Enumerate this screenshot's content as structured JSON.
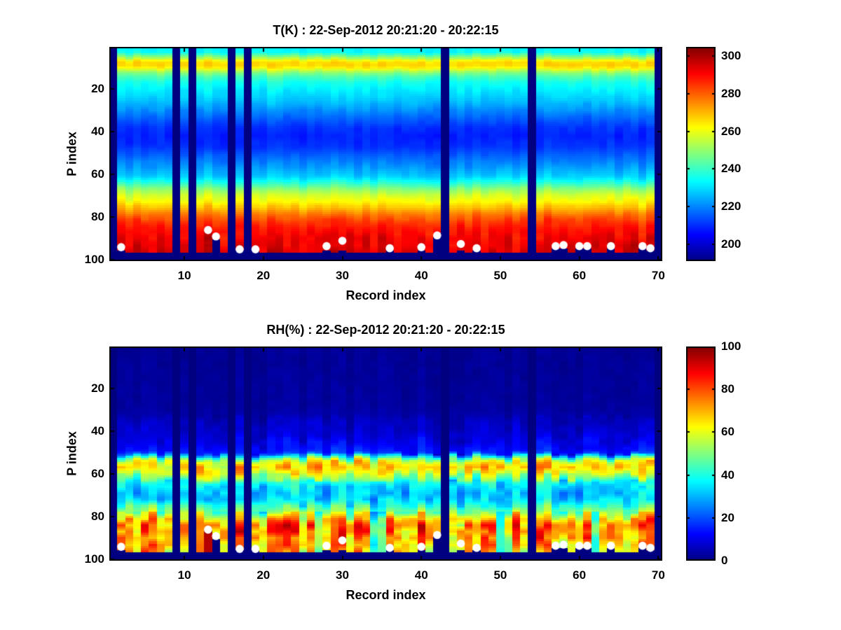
{
  "chart_data": [
    {
      "type": "heatmap",
      "id": "temperature",
      "title": "T(K) : 22-Sep-2012 20:21:20 - 20:22:15",
      "xlabel": "Record index",
      "ylabel": "P index",
      "x_range": [
        0.5,
        70.5
      ],
      "y_range": [
        0.5,
        100.5
      ],
      "y_axis_reversed": true,
      "x_ticks": [
        10,
        20,
        30,
        40,
        50,
        60,
        70
      ],
      "y_ticks": [
        20,
        40,
        60,
        80,
        100
      ],
      "n_records": 70,
      "n_levels": 100,
      "colormap": "jet",
      "clim": [
        191,
        305
      ],
      "colorbar_ticks": [
        200,
        220,
        240,
        260,
        280,
        300
      ],
      "vertical_profile": [
        [
          1,
          233
        ],
        [
          3,
          234
        ],
        [
          5,
          248
        ],
        [
          6,
          254
        ],
        [
          7,
          263
        ],
        [
          8,
          267
        ],
        [
          9,
          267
        ],
        [
          10,
          264
        ],
        [
          12,
          251
        ],
        [
          14,
          243
        ],
        [
          17,
          236
        ],
        [
          20,
          233
        ],
        [
          24,
          229
        ],
        [
          28,
          224
        ],
        [
          33,
          217
        ],
        [
          38,
          211
        ],
        [
          42,
          209
        ],
        [
          47,
          211
        ],
        [
          52,
          217
        ],
        [
          57,
          223
        ],
        [
          61,
          229
        ],
        [
          64,
          239
        ],
        [
          67,
          250
        ],
        [
          70,
          258
        ],
        [
          73,
          263
        ],
        [
          76,
          271
        ],
        [
          79,
          279
        ],
        [
          82,
          285
        ],
        [
          85,
          289
        ],
        [
          89,
          292
        ],
        [
          96,
          295
        ],
        [
          100,
          296
        ]
      ],
      "noise": {
        "base": {
          "col": 1.5,
          "cell": 1.3
        },
        "row_shift": 0.5,
        "bands": [
          {
            "range": [
              1,
              12
            ],
            "col": 1.5,
            "cell": 1.2
          },
          {
            "range": [
              13,
              30
            ],
            "col": 1.8,
            "cell": 1.6
          },
          {
            "range": [
              55,
              79
            ],
            "col": 2.2,
            "cell": 1.6
          },
          {
            "range": [
              80,
              87
            ],
            "col": 2.5,
            "cell": 2.5
          },
          {
            "range": [
              88,
              96
            ],
            "col": 4,
            "cell": 3.5
          }
        ]
      },
      "seed": 11,
      "hot_below": [
        {
          "record": 13,
          "from": 87
        }
      ],
      "dry_columns": []
    },
    {
      "type": "heatmap",
      "id": "humidity",
      "title": "RH(%) : 22-Sep-2012 20:21:20 - 20:22:15",
      "xlabel": "Record index",
      "ylabel": "P index",
      "x_range": [
        0.5,
        70.5
      ],
      "y_range": [
        0.5,
        100.5
      ],
      "y_axis_reversed": true,
      "x_ticks": [
        10,
        20,
        30,
        40,
        50,
        60,
        70
      ],
      "y_ticks": [
        20,
        40,
        60,
        80,
        100
      ],
      "n_records": 70,
      "n_levels": 100,
      "colormap": "jet",
      "clim": [
        0,
        100
      ],
      "colorbar_ticks": [
        0,
        20,
        40,
        60,
        80,
        100
      ],
      "vertical_profile": [
        [
          1,
          2
        ],
        [
          28,
          3
        ],
        [
          32,
          4
        ],
        [
          35,
          6
        ],
        [
          38,
          7
        ],
        [
          41,
          8
        ],
        [
          44,
          10
        ],
        [
          47,
          12
        ],
        [
          50,
          15
        ],
        [
          51,
          24
        ],
        [
          52,
          38
        ],
        [
          53,
          50
        ],
        [
          54,
          59
        ],
        [
          56,
          65
        ],
        [
          58,
          64
        ],
        [
          60,
          57
        ],
        [
          62,
          49
        ],
        [
          64,
          38
        ],
        [
          66,
          35
        ],
        [
          68,
          33
        ],
        [
          70,
          32
        ],
        [
          72,
          33
        ],
        [
          74,
          39
        ],
        [
          76,
          47
        ],
        [
          78,
          54
        ],
        [
          80,
          64
        ],
        [
          82,
          72
        ],
        [
          84,
          75
        ],
        [
          86,
          76
        ],
        [
          88,
          74
        ],
        [
          90,
          71
        ],
        [
          93,
          69
        ],
        [
          96,
          67
        ],
        [
          100,
          67
        ]
      ],
      "noise": {
        "base": {
          "col": 1.5,
          "cell": 1.5
        },
        "row_shift": 1.2,
        "bands": [
          {
            "range": [
              1,
              32
            ],
            "col": 1,
            "cell": 1
          },
          {
            "range": [
              33,
              42
            ],
            "col": 2.5,
            "cell": 2
          },
          {
            "range": [
              43,
              50
            ],
            "col": 3.5,
            "cell": 3
          },
          {
            "range": [
              51,
              63
            ],
            "col": 7,
            "cell": 9.5
          },
          {
            "range": [
              64,
              77
            ],
            "col": 5,
            "cell": 7
          },
          {
            "range": [
              78,
              96
            ],
            "col": 13,
            "cell": 11
          }
        ]
      },
      "seed": 23,
      "hot_below": [
        {
          "record": 13,
          "from": 87
        }
      ],
      "dry_columns": [
        {
          "records": [
            27,
            34,
            35,
            50,
            62
          ],
          "p_from": 64,
          "p_to": 77,
          "factor": 0.85
        },
        {
          "records": [
            27,
            34,
            35,
            50,
            62
          ],
          "p_from": 78,
          "p_to": 96,
          "factor": 0.6
        }
      ]
    }
  ],
  "missing_records": [
    1,
    9,
    11,
    16,
    18,
    43,
    54,
    70
  ],
  "surface_mask_start_level": 97,
  "surface_dots": [
    {
      "record": 2,
      "p": 94,
      "mask_from": 96
    },
    {
      "record": 13,
      "p": 86,
      "mask_from": 97
    },
    {
      "record": 14,
      "p": 89,
      "mask_from": 91
    },
    {
      "record": 17,
      "p": 95,
      "mask_from": 96
    },
    {
      "record": 19,
      "p": 95,
      "mask_from": 96
    },
    {
      "record": 28,
      "p": 93.5,
      "mask_from": 96
    },
    {
      "record": 30,
      "p": 91,
      "mask_from": 96
    },
    {
      "record": 36,
      "p": 94.5,
      "mask_from": 96
    },
    {
      "record": 40,
      "p": 94,
      "mask_from": 96
    },
    {
      "record": 42,
      "p": 88.5,
      "mask_from": 90
    },
    {
      "record": 45,
      "p": 92.5,
      "mask_from": 96
    },
    {
      "record": 47,
      "p": 94.5,
      "mask_from": 96
    },
    {
      "record": 57,
      "p": 93.5,
      "mask_from": 95
    },
    {
      "record": 58,
      "p": 93,
      "mask_from": 95
    },
    {
      "record": 60,
      "p": 93.5,
      "mask_from": 95
    },
    {
      "record": 61,
      "p": 93.5,
      "mask_from": 95
    },
    {
      "record": 64,
      "p": 93.5,
      "mask_from": 95
    },
    {
      "record": 68,
      "p": 93.5,
      "mask_from": 95
    },
    {
      "record": 69,
      "p": 94.5,
      "mask_from": 96
    }
  ],
  "marker": {
    "shape": "circle",
    "color": "#ffffff",
    "radius": 5.8
  }
}
